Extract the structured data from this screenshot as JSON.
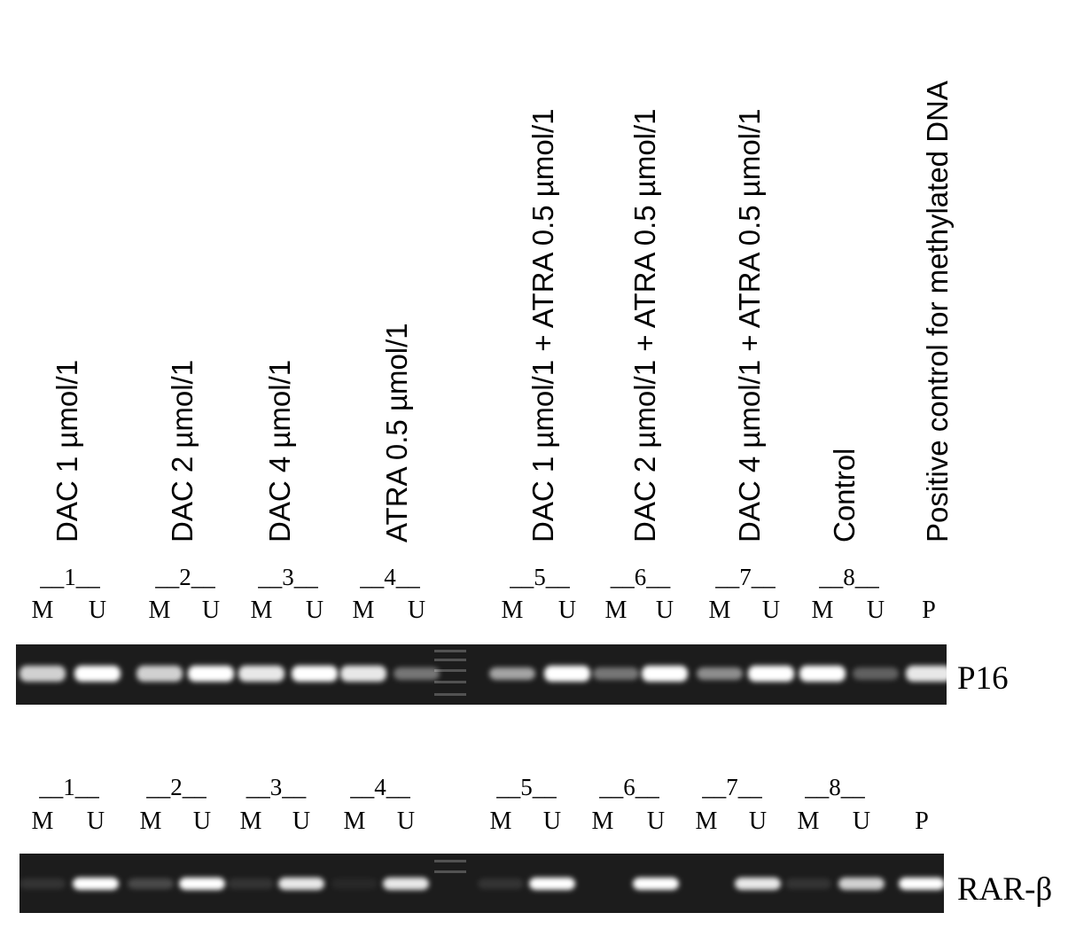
{
  "conditions": [
    "DAC 1 µmol/1",
    "DAC 2 µmol/1",
    "DAC 4 µmol/1",
    "ATRA 0.5 µmol/1",
    "DAC 1 µmol/1 + ATRA 0.5 µmol/1",
    "DAC 2 µmol/1 + ATRA 0.5 µmol/1",
    "DAC 4 µmol/1 + ATRA 0.5 µmol/1",
    "Control",
    "Positive control for methylated DNA"
  ],
  "gels": [
    {
      "name": "P16",
      "groups": [
        "__1__",
        "__2__",
        "__3__",
        "__4__",
        "__5__",
        "__6__",
        "__7__",
        "__8__"
      ],
      "lanes": [
        "M",
        "U",
        "M",
        "U",
        "M",
        "U",
        "M",
        "U",
        "M",
        "U",
        "M",
        "U",
        "M",
        "U",
        "M",
        "U",
        "P"
      ]
    },
    {
      "name": "RAR-β",
      "groups": [
        "__1__",
        "__2__",
        "__3__",
        "__4__",
        "__5__",
        "__6__",
        "__7__",
        "__8__"
      ],
      "lanes": [
        "M",
        "U",
        "M",
        "U",
        "M",
        "U",
        "M",
        "U",
        "M",
        "U",
        "M",
        "U",
        "M",
        "U",
        "M",
        "U",
        "P"
      ]
    }
  ]
}
